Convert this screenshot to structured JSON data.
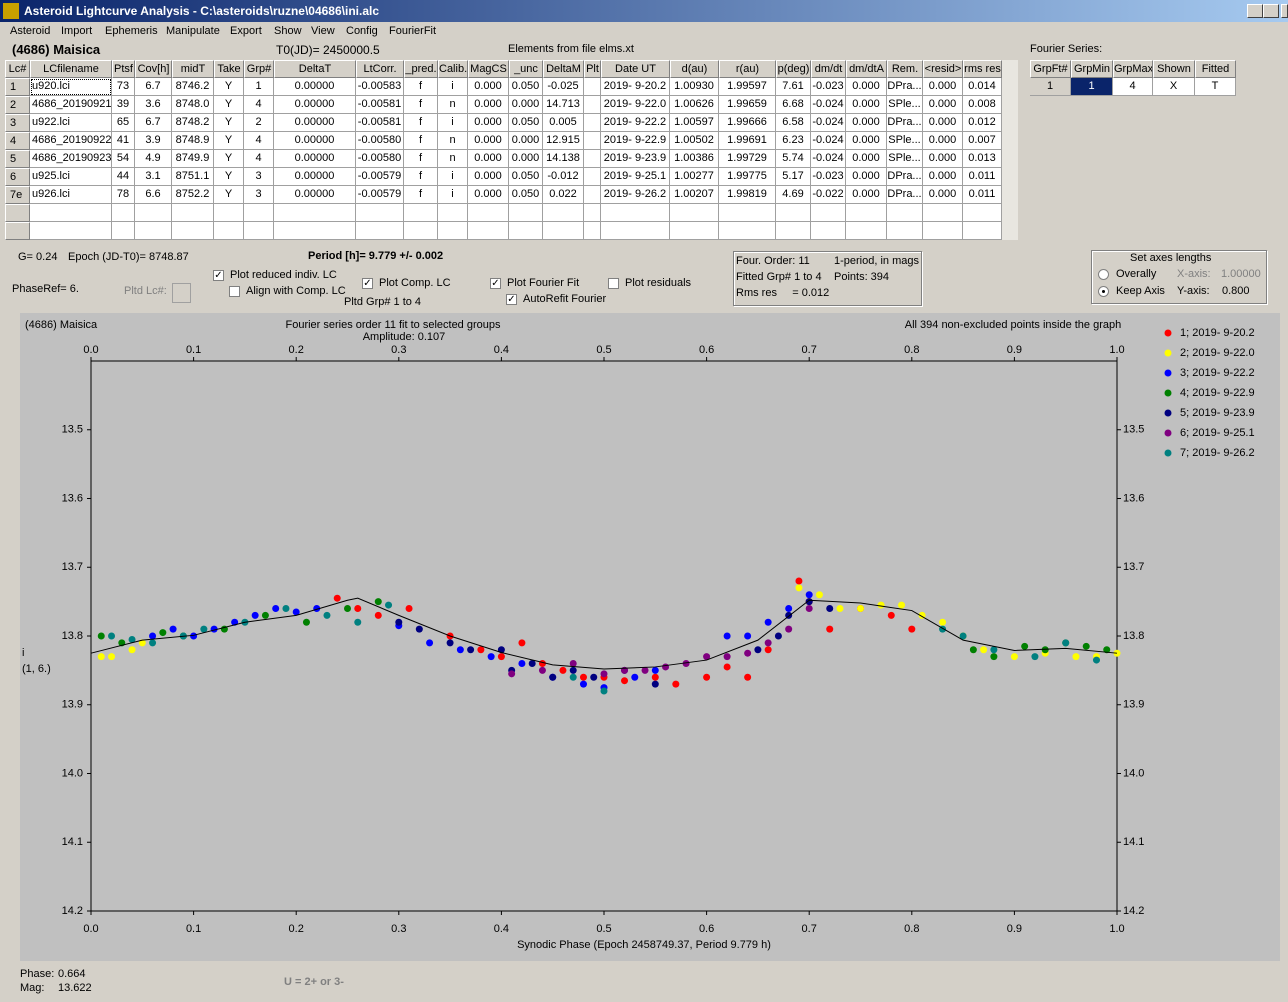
{
  "window": {
    "title": "Asteroid Lightcurve Analysis - C:\\asteroids\\ruzne\\04686\\ini.alc",
    "menu": [
      "Asteroid",
      "Import",
      "Ephemeris",
      "Manipulate",
      "Export",
      "Show",
      "View",
      "Config",
      "FourierFit"
    ]
  },
  "header": {
    "object": "(4686) Maisica",
    "t0": "T0(JD)= 2450000.5",
    "elements": "Elements from file elms.xt"
  },
  "table": {
    "columns": [
      "Lc#",
      "LCfilename",
      "Ptsf",
      "Cov[h]",
      "midT",
      "Take",
      "Grp#",
      "DeltaT",
      "LtCorr.",
      "_pred.",
      "Calib.",
      "MagCS",
      "_unc",
      "DeltaM",
      "Plt",
      "Date UT",
      "d(au)",
      "r(au)",
      "p(deg)",
      "dm/dt",
      "dm/dtA",
      "Rem.",
      "<resid>",
      "rms res"
    ],
    "rows": [
      {
        "label": "1",
        "cells": [
          "u920.lci",
          "73",
          "6.7",
          "8746.2",
          "Y",
          "1",
          "0.00000",
          "-0.00583",
          "f",
          "i",
          "0.000",
          "0.050",
          "-0.025",
          null,
          "2019- 9-20.2",
          "1.00930",
          "1.99597",
          "7.61",
          "-0.023",
          "0.000",
          "DPra...",
          "0.000",
          "0.014"
        ]
      },
      {
        "label": "2",
        "cells": [
          "4686_20190921",
          "39",
          "3.6",
          "8748.0",
          "Y",
          "4",
          "0.00000",
          "-0.00581",
          "f",
          "n",
          "0.000",
          "0.000",
          "14.713",
          null,
          "2019- 9-22.0",
          "1.00626",
          "1.99659",
          "6.68",
          "-0.024",
          "0.000",
          "SPle...",
          "0.000",
          "0.008"
        ]
      },
      {
        "label": "3",
        "cells": [
          "u922.lci",
          "65",
          "6.7",
          "8748.2",
          "Y",
          "2",
          "0.00000",
          "-0.00581",
          "f",
          "i",
          "0.000",
          "0.050",
          "0.005",
          null,
          "2019- 9-22.2",
          "1.00597",
          "1.99666",
          "6.58",
          "-0.024",
          "0.000",
          "DPra...",
          "0.000",
          "0.012"
        ]
      },
      {
        "label": "4",
        "cells": [
          "4686_20190922",
          "41",
          "3.9",
          "8748.9",
          "Y",
          "4",
          "0.00000",
          "-0.00580",
          "f",
          "n",
          "0.000",
          "0.000",
          "12.915",
          null,
          "2019- 9-22.9",
          "1.00502",
          "1.99691",
          "6.23",
          "-0.024",
          "0.000",
          "SPle...",
          "0.000",
          "0.007"
        ]
      },
      {
        "label": "5",
        "cells": [
          "4686_20190923",
          "54",
          "4.9",
          "8749.9",
          "Y",
          "4",
          "0.00000",
          "-0.00580",
          "f",
          "n",
          "0.000",
          "0.000",
          "14.138",
          null,
          "2019- 9-23.9",
          "1.00386",
          "1.99729",
          "5.74",
          "-0.024",
          "0.000",
          "SPle...",
          "0.000",
          "0.013"
        ]
      },
      {
        "label": "6",
        "cells": [
          "u925.lci",
          "44",
          "3.1",
          "8751.1",
          "Y",
          "3",
          "0.00000",
          "-0.00579",
          "f",
          "i",
          "0.000",
          "0.050",
          "-0.012",
          null,
          "2019- 9-25.1",
          "1.00277",
          "1.99775",
          "5.17",
          "-0.023",
          "0.000",
          "DPra...",
          "0.000",
          "0.011"
        ]
      },
      {
        "label": "7e",
        "cells": [
          "u926.lci",
          "78",
          "6.6",
          "8752.2",
          "Y",
          "3",
          "0.00000",
          "-0.00579",
          "f",
          "i",
          "0.000",
          "0.050",
          "0.022",
          null,
          "2019- 9-26.2",
          "1.00207",
          "1.99819",
          "4.69",
          "-0.022",
          "0.000",
          "DPra...",
          "0.000",
          "0.011"
        ]
      }
    ]
  },
  "fourier_table": {
    "title": "Fourier Series:",
    "columns": [
      "GrpFt#",
      "GrpMin",
      "GrpMax",
      "Shown",
      "Fitted"
    ],
    "rows": [
      [
        "1",
        "1",
        "4",
        "X",
        "T"
      ]
    ]
  },
  "info": {
    "g": "G= 0.24",
    "epoch": "Epoch (JD-T0)= 8748.87",
    "period": "Period [h]= 9.779 +/- 0.002",
    "phase_ref": "PhaseRef= 6.",
    "pltd_lc": "Pltd Lc#:",
    "pltd_grp": "Pltd Grp#  1  to  4"
  },
  "fit_box": {
    "order": "Four. Order: 11",
    "mode": "1-period, in mags",
    "fitted": "Fitted Grp# 1 to 4",
    "points": "Points: 394",
    "rms": "Rms res     = 0.012"
  },
  "axes_box": {
    "title": "Set axes lengths",
    "radios": [
      {
        "label": "Overally",
        "selected": false
      },
      {
        "label": "Keep Axis",
        "selected": true
      }
    ],
    "x_label": "X-axis:",
    "x_value": "1.00000",
    "y_label": "Y-axis:",
    "y_value": "0.800"
  },
  "controls": [
    {
      "label": "Plot reduced indiv. LC",
      "checked": true
    },
    {
      "label": "Align with Comp. LC",
      "checked": false
    },
    {
      "label": "Plot Comp. LC",
      "checked": true
    },
    {
      "label": "Plot Fourier Fit",
      "checked": true
    },
    {
      "label": "AutoRefit Fourier",
      "checked": true
    },
    {
      "label": "Plot residuals",
      "checked": false
    }
  ],
  "chart_data": {
    "type": "scatter",
    "title": "(4686) Maisica",
    "subtitle": "Fourier series order 11 fit to selected groups",
    "amplitude": "Amplitude: 0.107",
    "note": "All 394 non-excluded points inside the graph",
    "y_label": "i",
    "y_label2": "(1, 6.)",
    "x_label": "Synodic Phase (Epoch 2458749.37, Period 9.779 h)",
    "xlim": [
      0,
      1
    ],
    "ylim": [
      13.4,
      14.2
    ],
    "y_inverted": true,
    "xticks": [
      {
        "value": 0,
        "label": "0.0"
      },
      0.1,
      0.2,
      0.3,
      0.4,
      0.5,
      0.6,
      0.7,
      0.8,
      0.9,
      {
        "value": 1,
        "label": "1.0"
      }
    ],
    "yticks": [
      13.5,
      13.6,
      13.7,
      13.8,
      13.9,
      {
        "value": 14,
        "label": "14.0"
      },
      14.1,
      14.2
    ],
    "series": [
      {
        "name": "1; 2019- 9-20.2",
        "color": "#ff0000",
        "x": [
          0.24,
          0.26,
          0.28,
          0.31,
          0.35,
          0.38,
          0.4,
          0.42,
          0.44,
          0.46,
          0.48,
          0.5,
          0.52,
          0.55,
          0.57,
          0.6,
          0.62,
          0.64,
          0.66,
          0.69,
          0.7,
          0.72,
          0.75,
          0.78,
          0.8
        ],
        "values": [
          13.745,
          13.76,
          13.77,
          13.76,
          13.8,
          13.82,
          13.83,
          13.81,
          13.84,
          13.85,
          13.86,
          13.86,
          13.865,
          13.86,
          13.87,
          13.86,
          13.845,
          13.86,
          13.82,
          13.72,
          13.75,
          13.79,
          13.76,
          13.77,
          13.79
        ]
      },
      {
        "name": "2; 2019- 9-22.0",
        "color": "#ffff00",
        "x": [
          0.01,
          0.02,
          0.04,
          0.05,
          0.69,
          0.71,
          0.73,
          0.75,
          0.77,
          0.79,
          0.81,
          0.83,
          0.85,
          0.87,
          0.9,
          0.93,
          0.96,
          0.98,
          1
        ],
        "values": [
          13.83,
          13.83,
          13.82,
          13.81,
          13.73,
          13.74,
          13.76,
          13.76,
          13.755,
          13.755,
          13.77,
          13.78,
          13.8,
          13.82,
          13.83,
          13.825,
          13.83,
          13.83,
          13.825
        ]
      },
      {
        "name": "3; 2019- 9-22.2",
        "color": "#0000ff",
        "x": [
          0.06,
          0.08,
          0.1,
          0.12,
          0.14,
          0.16,
          0.18,
          0.2,
          0.22,
          0.3,
          0.33,
          0.36,
          0.39,
          0.42,
          0.45,
          0.48,
          0.5,
          0.53,
          0.55,
          0.62,
          0.64,
          0.66,
          0.68,
          0.7
        ],
        "values": [
          13.8,
          13.79,
          13.8,
          13.79,
          13.78,
          13.77,
          13.76,
          13.765,
          13.76,
          13.785,
          13.81,
          13.82,
          13.83,
          13.84,
          13.86,
          13.87,
          13.875,
          13.86,
          13.85,
          13.8,
          13.8,
          13.78,
          13.76,
          13.74
        ]
      },
      {
        "name": "4; 2019- 9-22.9",
        "color": "#008000",
        "x": [
          0.01,
          0.03,
          0.07,
          0.09,
          0.13,
          0.17,
          0.21,
          0.25,
          0.28,
          0.86,
          0.88,
          0.91,
          0.93,
          0.95,
          0.97,
          0.99
        ],
        "values": [
          13.8,
          13.81,
          13.795,
          13.8,
          13.79,
          13.77,
          13.78,
          13.76,
          13.75,
          13.82,
          13.83,
          13.815,
          13.82,
          13.81,
          13.815,
          13.82
        ]
      },
      {
        "name": "5; 2019- 9-23.9",
        "color": "#000080",
        "x": [
          0.3,
          0.32,
          0.35,
          0.37,
          0.4,
          0.41,
          0.43,
          0.45,
          0.47,
          0.49,
          0.52,
          0.55,
          0.65,
          0.67,
          0.68,
          0.7,
          0.72
        ],
        "values": [
          13.78,
          13.79,
          13.81,
          13.82,
          13.82,
          13.85,
          13.84,
          13.86,
          13.85,
          13.86,
          13.85,
          13.87,
          13.82,
          13.8,
          13.77,
          13.75,
          13.76
        ]
      },
      {
        "name": "6; 2019- 9-25.1",
        "color": "#800080",
        "x": [
          0.41,
          0.44,
          0.47,
          0.5,
          0.52,
          0.54,
          0.56,
          0.58,
          0.6,
          0.62,
          0.64,
          0.66,
          0.68,
          0.7
        ],
        "values": [
          13.855,
          13.85,
          13.84,
          13.855,
          13.85,
          13.85,
          13.845,
          13.84,
          13.83,
          13.83,
          13.825,
          13.81,
          13.79,
          13.76
        ]
      },
      {
        "name": "7; 2019- 9-26.2",
        "color": "#008080",
        "x": [
          0.02,
          0.04,
          0.06,
          0.09,
          0.11,
          0.15,
          0.19,
          0.23,
          0.26,
          0.29,
          0.47,
          0.5,
          0.83,
          0.85,
          0.88,
          0.92,
          0.95,
          0.98
        ],
        "values": [
          13.8,
          13.805,
          13.81,
          13.8,
          13.79,
          13.78,
          13.76,
          13.77,
          13.78,
          13.755,
          13.86,
          13.88,
          13.79,
          13.8,
          13.82,
          13.83,
          13.81,
          13.835
        ]
      }
    ],
    "fourier_fit": {
      "color": "#000000",
      "x": [
        0,
        0.05,
        0.1,
        0.15,
        0.2,
        0.25,
        0.26,
        0.3,
        0.35,
        0.4,
        0.45,
        0.5,
        0.55,
        0.6,
        0.65,
        0.7,
        0.75,
        0.8,
        0.85,
        0.9,
        0.95,
        1
      ],
      "values": [
        13.825,
        13.806,
        13.799,
        13.78,
        13.77,
        13.748,
        13.745,
        13.77,
        13.8,
        13.824,
        13.842,
        13.848,
        13.845,
        13.835,
        13.806,
        13.748,
        13.752,
        13.763,
        13.806,
        13.821,
        13.818,
        13.825
      ]
    }
  },
  "status": {
    "phase_label": "Phase:",
    "phase": "0.664",
    "mag_label": "Mag:",
    "mag": "13.622",
    "hint": "U = 2+ or 3-"
  }
}
